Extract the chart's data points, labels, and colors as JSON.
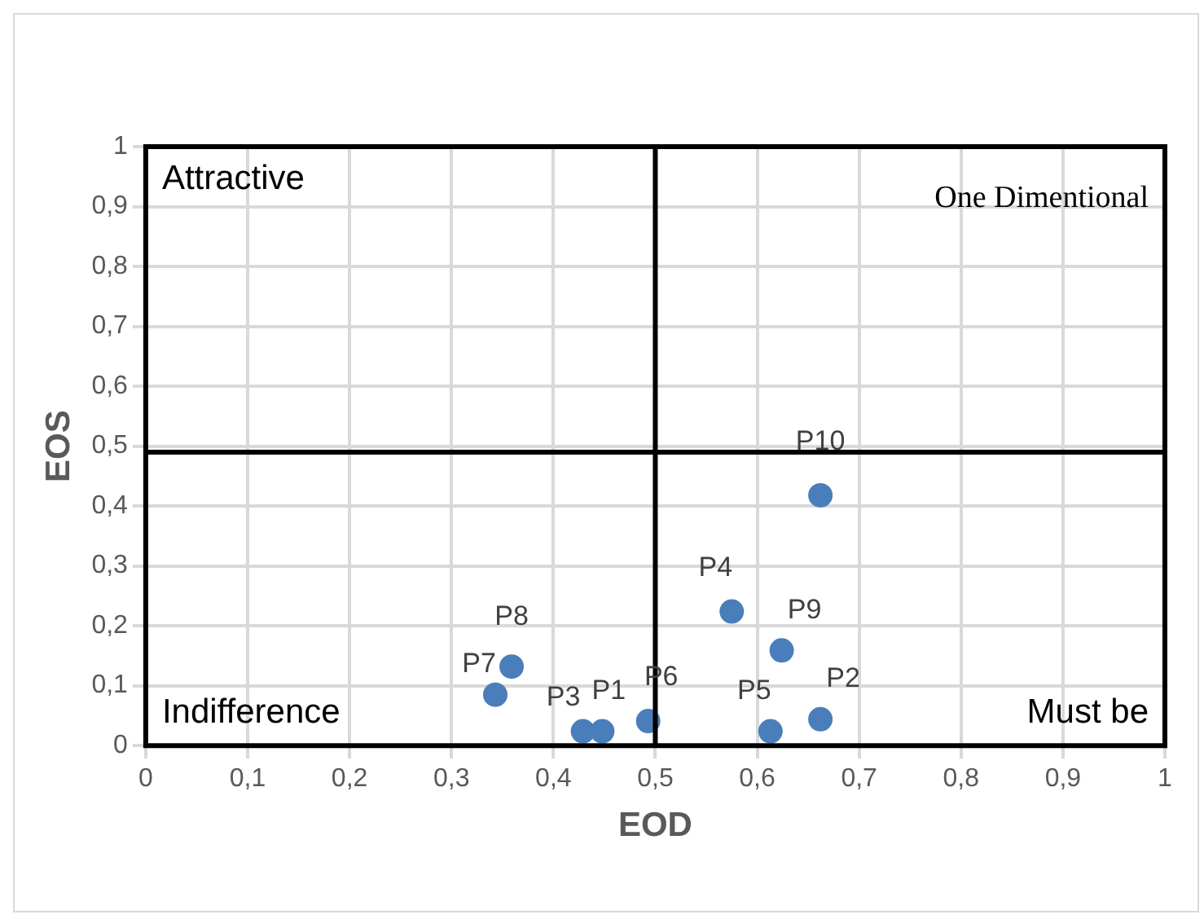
{
  "chart_data": {
    "type": "scatter",
    "xlabel": "EOD",
    "ylabel": "EOS",
    "xlim": [
      0,
      1
    ],
    "ylim": [
      0,
      1
    ],
    "xticks": [
      0,
      {
        "value": 0.1,
        "label": "0,1"
      },
      {
        "value": 0.2,
        "label": "0,2"
      },
      {
        "value": 0.3,
        "label": "0,3"
      },
      {
        "value": 0.4,
        "label": "0,4"
      },
      {
        "value": 0.5,
        "label": "0,5"
      },
      {
        "value": 0.6,
        "label": "0,6"
      },
      {
        "value": 0.7,
        "label": "0,7"
      },
      {
        "value": 0.8,
        "label": "0,8"
      },
      {
        "value": 0.9,
        "label": "0,9"
      },
      1
    ],
    "yticks": [
      0,
      {
        "value": 0.1,
        "label": "0,1"
      },
      {
        "value": 0.2,
        "label": "0,2"
      },
      {
        "value": 0.3,
        "label": "0,3"
      },
      {
        "value": 0.4,
        "label": "0,4"
      },
      {
        "value": 0.5,
        "label": "0,5"
      },
      {
        "value": 0.6,
        "label": "0,6"
      },
      {
        "value": 0.7,
        "label": "0,7"
      },
      {
        "value": 0.8,
        "label": "0,8"
      },
      {
        "value": 0.9,
        "label": "0,9"
      },
      1
    ],
    "grid": true,
    "marker": "circle",
    "series": [
      {
        "name": "P1",
        "color": "#4a7ebb",
        "x": [
          0.448
        ],
        "values": [
          0.024
        ]
      },
      {
        "name": "P2",
        "color": "#4a7ebb",
        "x": [
          0.662
        ],
        "values": [
          0.044
        ]
      },
      {
        "name": "P3",
        "color": "#4a7ebb",
        "x": [
          0.429
        ],
        "values": [
          0.024
        ]
      },
      {
        "name": "P4",
        "color": "#4a7ebb",
        "x": [
          0.575
        ],
        "values": [
          0.224
        ]
      },
      {
        "name": "P5",
        "color": "#4a7ebb",
        "x": [
          0.613
        ],
        "values": [
          0.024
        ]
      },
      {
        "name": "P6",
        "color": "#4a7ebb",
        "x": [
          0.493
        ],
        "values": [
          0.041
        ]
      },
      {
        "name": "P7",
        "color": "#4a7ebb",
        "x": [
          0.343
        ],
        "values": [
          0.085
        ]
      },
      {
        "name": "P8",
        "color": "#4a7ebb",
        "x": [
          0.359
        ],
        "values": [
          0.132
        ]
      },
      {
        "name": "P9",
        "color": "#4a7ebb",
        "x": [
          0.624
        ],
        "values": [
          0.159
        ]
      },
      {
        "name": "P10",
        "color": "#4a7ebb",
        "x": [
          0.662
        ],
        "values": [
          0.418
        ]
      }
    ],
    "ref_lines": [
      {
        "axis": "x",
        "value": 0.5,
        "color": "#000000"
      },
      {
        "axis": "y",
        "value": 0.49,
        "color": "#000000"
      }
    ],
    "annotations": [
      "Attractive",
      "One Dimentional",
      "Indifference",
      "Must be"
    ]
  }
}
